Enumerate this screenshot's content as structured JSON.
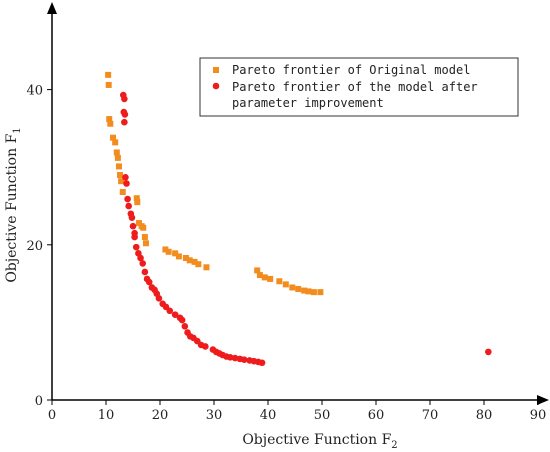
{
  "chart_data": {
    "type": "scatter",
    "title": "",
    "xlabel": "Objective Function F",
    "xlabel_sub": "2",
    "ylabel": "Objective Function F",
    "ylabel_sub": "1",
    "xlim": [
      0,
      90
    ],
    "ylim": [
      0,
      50
    ],
    "xticks": [
      0,
      10,
      20,
      30,
      40,
      50,
      60,
      70,
      80,
      90
    ],
    "yticks": [
      0,
      20,
      40
    ],
    "grid": false,
    "legend_placement": "top-right",
    "series": [
      {
        "name": "Pareto frontier of Original model",
        "marker": "square",
        "color": "#F28C1E",
        "points": [
          [
            10.4,
            41.9
          ],
          [
            10.5,
            40.6
          ],
          [
            10.6,
            36.2
          ],
          [
            10.8,
            35.6
          ],
          [
            11.3,
            33.8
          ],
          [
            11.7,
            33.2
          ],
          [
            12.0,
            31.9
          ],
          [
            12.2,
            31.2
          ],
          [
            12.4,
            30.1
          ],
          [
            12.6,
            29.0
          ],
          [
            12.8,
            28.2
          ],
          [
            13.1,
            26.8
          ],
          [
            15.7,
            26.0
          ],
          [
            15.8,
            25.5
          ],
          [
            16.1,
            22.8
          ],
          [
            16.6,
            22.4
          ],
          [
            16.9,
            22.2
          ],
          [
            17.2,
            21.0
          ],
          [
            17.4,
            20.2
          ],
          [
            21.0,
            19.4
          ],
          [
            21.6,
            19.1
          ],
          [
            22.8,
            18.9
          ],
          [
            23.5,
            18.5
          ],
          [
            24.8,
            18.3
          ],
          [
            25.5,
            18.0
          ],
          [
            26.4,
            17.8
          ],
          [
            27.1,
            17.5
          ],
          [
            28.6,
            17.1
          ],
          [
            38.0,
            16.7
          ],
          [
            38.5,
            16.1
          ],
          [
            39.4,
            15.8
          ],
          [
            40.4,
            15.6
          ],
          [
            42.1,
            15.3
          ],
          [
            43.3,
            14.9
          ],
          [
            44.5,
            14.5
          ],
          [
            45.6,
            14.3
          ],
          [
            46.7,
            14.1
          ],
          [
            47.5,
            14.0
          ],
          [
            48.5,
            13.9
          ],
          [
            49.7,
            13.9
          ]
        ]
      },
      {
        "name": "Pareto frontier of the model after parameter improvement",
        "marker": "circle",
        "color": "#EE1C1C",
        "points": [
          [
            13.2,
            39.3
          ],
          [
            13.4,
            38.8
          ],
          [
            13.3,
            37.1
          ],
          [
            13.5,
            36.8
          ],
          [
            13.4,
            35.8
          ],
          [
            13.6,
            28.7
          ],
          [
            13.8,
            27.9
          ],
          [
            14.0,
            25.9
          ],
          [
            14.2,
            25.0
          ],
          [
            14.6,
            24.0
          ],
          [
            14.8,
            23.5
          ],
          [
            15.0,
            22.4
          ],
          [
            15.3,
            21.5
          ],
          [
            15.3,
            21.0
          ],
          [
            15.6,
            19.7
          ],
          [
            16.0,
            18.9
          ],
          [
            16.4,
            18.3
          ],
          [
            16.8,
            17.6
          ],
          [
            17.2,
            16.5
          ],
          [
            17.6,
            15.6
          ],
          [
            18.0,
            15.2
          ],
          [
            18.5,
            14.5
          ],
          [
            19.0,
            14.2
          ],
          [
            19.4,
            13.7
          ],
          [
            19.8,
            13.1
          ],
          [
            20.5,
            12.4
          ],
          [
            21.1,
            12.0
          ],
          [
            21.8,
            11.5
          ],
          [
            22.8,
            11.0
          ],
          [
            23.7,
            10.6
          ],
          [
            24.1,
            10.3
          ],
          [
            24.6,
            9.5
          ],
          [
            25.1,
            8.7
          ],
          [
            25.6,
            8.2
          ],
          [
            26.2,
            8.0
          ],
          [
            26.9,
            7.6
          ],
          [
            27.6,
            7.1
          ],
          [
            28.4,
            6.9
          ],
          [
            29.8,
            6.5
          ],
          [
            30.4,
            6.2
          ],
          [
            31.0,
            6.0
          ],
          [
            31.6,
            5.8
          ],
          [
            32.3,
            5.6
          ],
          [
            33.0,
            5.5
          ],
          [
            33.9,
            5.4
          ],
          [
            34.8,
            5.3
          ],
          [
            35.6,
            5.2
          ],
          [
            36.6,
            5.1
          ],
          [
            37.4,
            5.0
          ],
          [
            38.2,
            4.9
          ],
          [
            38.9,
            4.8
          ],
          [
            80.8,
            6.2
          ]
        ]
      }
    ]
  },
  "legend": {
    "entries": [
      {
        "line1": "Pareto frontier of Original model",
        "line2": ""
      },
      {
        "line1": "Pareto frontier of the model after",
        "line2": "parameter improvement"
      }
    ]
  }
}
